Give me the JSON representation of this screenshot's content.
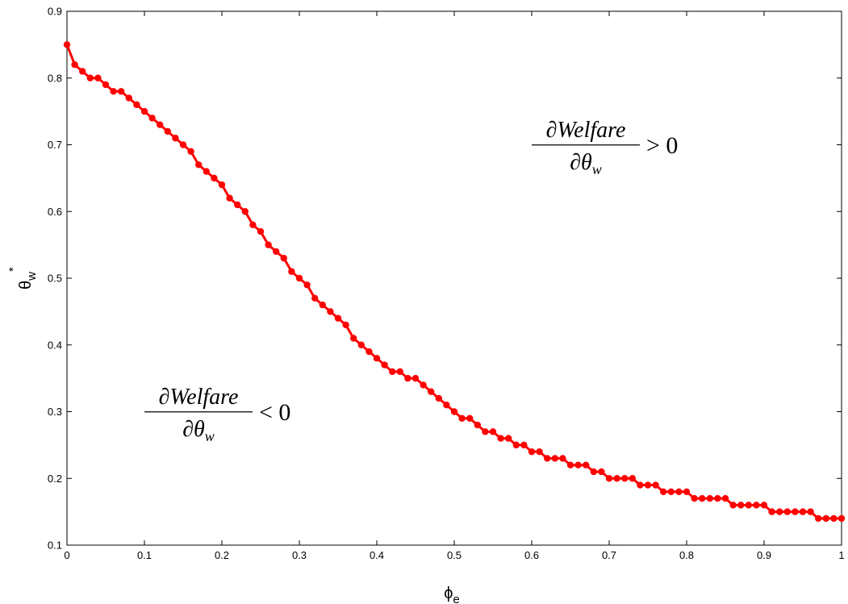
{
  "chart_data": {
    "type": "line",
    "title": "",
    "xlabel": {
      "symbol": "ϕ",
      "subscript": "e"
    },
    "ylabel": {
      "symbol": "θ",
      "subscript": "w",
      "superscript": "*"
    },
    "xlim": [
      0,
      1
    ],
    "ylim": [
      0.1,
      0.9
    ],
    "xticks": [
      "0",
      "0.1",
      "0.2",
      "0.3",
      "0.4",
      "0.5",
      "0.6",
      "0.7",
      "0.8",
      "0.9",
      "1"
    ],
    "yticks": [
      "0.1",
      "0.2",
      "0.3",
      "0.4",
      "0.5",
      "0.6",
      "0.7",
      "0.8",
      "0.9"
    ],
    "grid": false,
    "series": [
      {
        "color": "#ff0000",
        "marker": "circle",
        "x": [
          0,
          0.01,
          0.02,
          0.03,
          0.04,
          0.05,
          0.06,
          0.07,
          0.08,
          0.09,
          0.1,
          0.11,
          0.12,
          0.13,
          0.14,
          0.15,
          0.16,
          0.17,
          0.18,
          0.19,
          0.2,
          0.21,
          0.22,
          0.23,
          0.24,
          0.25,
          0.26,
          0.27,
          0.28,
          0.29,
          0.3,
          0.31,
          0.32,
          0.33,
          0.34,
          0.35,
          0.36,
          0.37,
          0.38,
          0.39,
          0.4,
          0.41,
          0.42,
          0.43,
          0.44,
          0.45,
          0.46,
          0.47,
          0.48,
          0.49,
          0.5,
          0.51,
          0.52,
          0.53,
          0.54,
          0.55,
          0.56,
          0.57,
          0.58,
          0.59,
          0.6,
          0.61,
          0.62,
          0.63,
          0.64,
          0.65,
          0.66,
          0.67,
          0.68,
          0.69,
          0.7,
          0.71,
          0.72,
          0.73,
          0.74,
          0.75,
          0.76,
          0.77,
          0.78,
          0.79,
          0.8,
          0.81,
          0.82,
          0.83,
          0.84,
          0.85,
          0.86,
          0.87,
          0.88,
          0.89,
          0.9,
          0.91,
          0.92,
          0.93,
          0.94,
          0.95,
          0.96,
          0.97,
          0.98,
          0.99,
          1.0
        ],
        "y": [
          0.85,
          0.82,
          0.81,
          0.8,
          0.8,
          0.79,
          0.78,
          0.78,
          0.77,
          0.76,
          0.75,
          0.74,
          0.73,
          0.72,
          0.71,
          0.7,
          0.69,
          0.67,
          0.66,
          0.65,
          0.64,
          0.62,
          0.61,
          0.6,
          0.58,
          0.57,
          0.55,
          0.54,
          0.53,
          0.51,
          0.5,
          0.49,
          0.47,
          0.46,
          0.45,
          0.44,
          0.43,
          0.41,
          0.4,
          0.39,
          0.38,
          0.37,
          0.36,
          0.36,
          0.35,
          0.35,
          0.34,
          0.33,
          0.32,
          0.31,
          0.3,
          0.29,
          0.29,
          0.28,
          0.27,
          0.27,
          0.26,
          0.26,
          0.25,
          0.25,
          0.24,
          0.24,
          0.23,
          0.23,
          0.23,
          0.22,
          0.22,
          0.22,
          0.21,
          0.21,
          0.2,
          0.2,
          0.2,
          0.2,
          0.19,
          0.19,
          0.19,
          0.18,
          0.18,
          0.18,
          0.18,
          0.17,
          0.17,
          0.17,
          0.17,
          0.17,
          0.16,
          0.16,
          0.16,
          0.16,
          0.16,
          0.15,
          0.15,
          0.15,
          0.15,
          0.15,
          0.15,
          0.14,
          0.14,
          0.14,
          0.14
        ]
      }
    ],
    "annotations": [
      {
        "id": "upper",
        "numerator": "∂Welfare",
        "den_symbol": "∂θ",
        "den_subscript": "w",
        "relation": "> 0",
        "x": 0.6,
        "y": 0.69
      },
      {
        "id": "lower",
        "numerator": "∂Welfare",
        "den_symbol": "∂θ",
        "den_subscript": "w",
        "relation": "< 0",
        "x": 0.1,
        "y": 0.29
      }
    ]
  }
}
